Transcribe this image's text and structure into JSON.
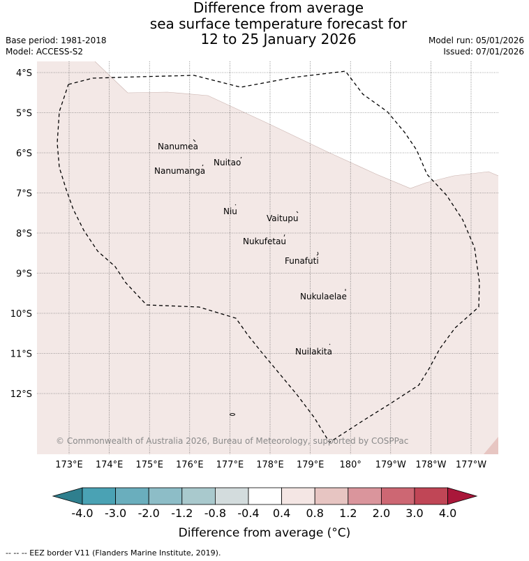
{
  "title": {
    "line1": "Difference from average",
    "line2": "sea surface temperature forecast for",
    "line3": "12 to 25 January 2026"
  },
  "meta": {
    "base_period": "Base period: 1981-2018",
    "model": "Model: ACCESS-S2",
    "model_run": "Model run: 05/01/2026",
    "issued": "Issued: 07/01/2026"
  },
  "map": {
    "lon_ticks": [
      "173°E",
      "174°E",
      "175°E",
      "176°E",
      "177°E",
      "178°E",
      "179°E",
      "180°",
      "179°W",
      "178°W",
      "177°W"
    ],
    "lat_ticks": [
      "4°S",
      "5°S",
      "6°S",
      "7°S",
      "8°S",
      "9°S",
      "10°S",
      "11°S",
      "12°S"
    ],
    "places": [
      {
        "name": "Nanumea"
      },
      {
        "name": "Nuitao"
      },
      {
        "name": "Nanumanga"
      },
      {
        "name": "Niu"
      },
      {
        "name": "Vaitupu"
      },
      {
        "name": "Nukufetau"
      },
      {
        "name": "Funafuti"
      },
      {
        "name": "Nukulaelae"
      },
      {
        "name": "Nuilakita"
      }
    ],
    "copyright": "© Commonwealth of Australia 2026, Bureau of Meteorology, supported by COSPPac",
    "colors": {
      "ocean_fill": "#f3e8e6",
      "neutral_fill": "#ffffff",
      "corner_fill": "#e7c6c2",
      "grid": "#444444",
      "eez_border": "#000000"
    }
  },
  "colorbar": {
    "ticks": [
      "-4.0",
      "-3.0",
      "-2.0",
      "-1.2",
      "-0.8",
      "-0.4",
      "0.4",
      "0.8",
      "1.2",
      "2.0",
      "3.0",
      "4.0"
    ],
    "colors": [
      "#2f7f8e",
      "#4aa2b4",
      "#6aaebd",
      "#8dbdc7",
      "#a9c9cd",
      "#d3dcdd",
      "#ffffff",
      "#f4e6e4",
      "#e7c5c2",
      "#da959c",
      "#cd6773",
      "#c04656",
      "#a9173a"
    ],
    "label": "Difference from average (°C)"
  },
  "footer": {
    "eez_note": "--  --  -- EEZ border V11 (Flanders Marine Institute, 2019)."
  }
}
